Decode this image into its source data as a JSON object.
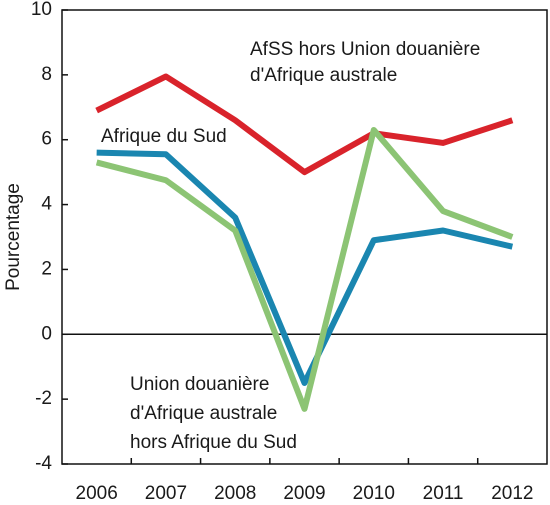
{
  "chart_data": {
    "type": "line",
    "y_label": "Pourcentage",
    "categories": [
      "2006",
      "2007",
      "2008",
      "2009",
      "2010",
      "2011",
      "2012"
    ],
    "series": [
      {
        "name": [
          "AfSS hors Union douanière",
          "d'Afrique australe"
        ],
        "color": "#d9232b",
        "values": [
          6.9,
          7.95,
          6.6,
          5.0,
          6.2,
          5.9,
          6.6
        ]
      },
      {
        "name": [
          "Afrique du Sud"
        ],
        "color": "#1a86b0",
        "values": [
          5.6,
          5.55,
          3.6,
          -1.5,
          2.9,
          3.2,
          2.7
        ]
      },
      {
        "name": [
          "Union douanière",
          "d'Afrique australe",
          "hors Afrique du Sud"
        ],
        "color": "#8cc474",
        "values": [
          5.3,
          4.75,
          3.2,
          -2.3,
          6.3,
          3.8,
          3.0
        ]
      }
    ],
    "ylim": [
      -4,
      10
    ],
    "yticks": [
      -4,
      -2,
      0,
      2,
      4,
      6,
      8,
      10
    ]
  }
}
